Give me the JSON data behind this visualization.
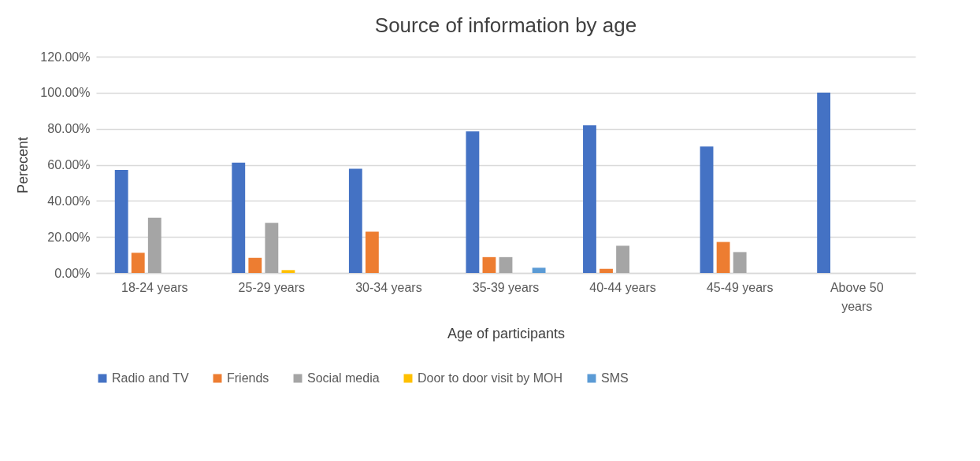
{
  "chart_data": {
    "type": "bar",
    "title": "Source of information by age",
    "xlabel": "Age of participants",
    "ylabel": "Perecent",
    "categories": [
      "18-24 years",
      "25-29 years",
      "30-34 years",
      "35-39 years",
      "40-44 years",
      "45-49 years",
      "Above 50 years"
    ],
    "series": [
      {
        "name": "Radio and TV",
        "color": "#4472c4",
        "values": [
          57.2,
          61.2,
          57.8,
          78.6,
          81.9,
          70.1,
          100
        ]
      },
      {
        "name": "Friends",
        "color": "#ed7d31",
        "values": [
          11.2,
          8.4,
          22.9,
          8.8,
          2.3,
          17.2,
          null
        ]
      },
      {
        "name": "Social media",
        "color": "#a5a5a5",
        "values": [
          30.7,
          27.8,
          null,
          8.8,
          15.1,
          11.6,
          null
        ]
      },
      {
        "name": "Door to door visit by MOH",
        "color": "#ffc000",
        "values": [
          null,
          1.6,
          null,
          null,
          null,
          null,
          null
        ]
      },
      {
        "name": "SMS",
        "color": "#5b9bd5",
        "values": [
          null,
          null,
          null,
          2.9,
          null,
          null,
          null
        ]
      }
    ],
    "ylim": [
      0,
      120
    ],
    "yticks": [
      {
        "value": 0,
        "label": "0.00%"
      },
      {
        "value": 20,
        "label": "20.00%"
      },
      {
        "value": 40,
        "label": "40.00%"
      },
      {
        "value": 60,
        "label": "60.00%"
      },
      {
        "value": 80,
        "label": "80.00%"
      },
      {
        "value": 100,
        "label": "100.00%"
      },
      {
        "value": 120,
        "label": "120.00%"
      }
    ],
    "grid": "y",
    "legend": "bottom"
  }
}
